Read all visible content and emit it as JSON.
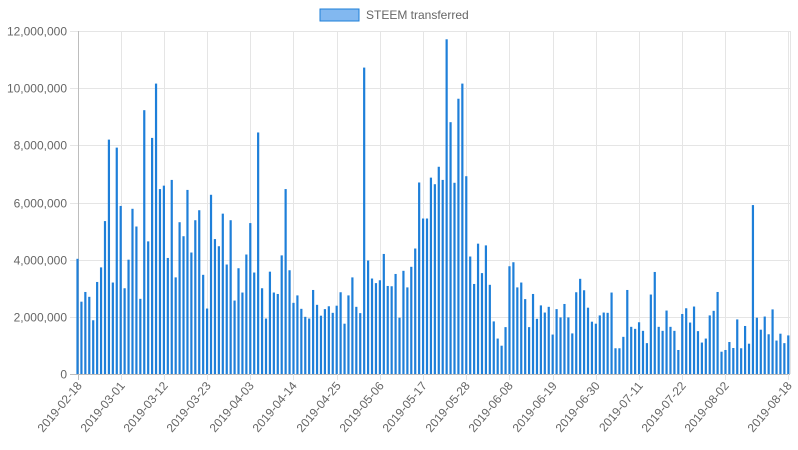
{
  "chart_data": {
    "type": "bar",
    "legend_position": "top",
    "grid": true,
    "series": [
      {
        "name": "STEEM transferred",
        "color": "#1e7fd9",
        "fill": "#82b8f0",
        "start_date": "2019-02-18",
        "values": [
          4030000,
          2530000,
          2870000,
          2700000,
          1880000,
          3220000,
          3730000,
          5350000,
          8200000,
          3200000,
          7920000,
          5880000,
          3000000,
          4000000,
          5780000,
          5160000,
          2630000,
          9230000,
          4640000,
          8260000,
          10160000,
          6470000,
          6590000,
          4060000,
          6790000,
          3380000,
          5310000,
          4820000,
          6440000,
          4250000,
          5380000,
          5730000,
          3470000,
          2290000,
          6270000,
          4720000,
          4470000,
          5610000,
          3830000,
          5380000,
          2570000,
          3700000,
          2850000,
          4180000,
          5280000,
          3550000,
          8450000,
          3000000,
          1940000,
          3580000,
          2850000,
          2800000,
          4150000,
          6470000,
          3630000,
          2490000,
          2750000,
          2280000,
          2000000,
          1940000,
          2940000,
          2420000,
          2040000,
          2270000,
          2370000,
          2140000,
          2390000,
          2860000,
          1760000,
          2750000,
          3380000,
          2350000,
          2130000,
          10720000,
          3970000,
          3340000,
          3180000,
          3280000,
          4200000,
          3080000,
          3070000,
          3500000,
          1970000,
          3610000,
          3030000,
          3750000,
          4390000,
          6700000,
          5440000,
          5440000,
          6870000,
          6640000,
          7250000,
          6790000,
          11710000,
          8810000,
          6690000,
          9630000,
          10160000,
          6920000,
          4110000,
          3150000,
          4560000,
          3530000,
          4500000,
          3120000,
          1840000,
          1240000,
          990000,
          1640000,
          3770000,
          3910000,
          3030000,
          3200000,
          2620000,
          1640000,
          2800000,
          1930000,
          2400000,
          2150000,
          2350000,
          1380000,
          2270000,
          1980000,
          2450000,
          1980000,
          1420000,
          2860000,
          3330000,
          2930000,
          2320000,
          1830000,
          1760000,
          2050000,
          2150000,
          2140000,
          2850000,
          900000,
          900000,
          1300000,
          2940000,
          1650000,
          1580000,
          1810000,
          1510000,
          1080000,
          2780000,
          3570000,
          1650000,
          1510000,
          2220000,
          1650000,
          1510000,
          840000,
          2100000,
          2300000,
          1800000,
          2360000,
          1500000,
          1100000,
          1240000,
          2050000,
          2210000,
          2870000,
          780000,
          840000,
          1120000,
          910000,
          1910000,
          900000,
          1680000,
          1060000,
          5910000,
          1970000,
          1550000,
          2010000,
          1390000,
          2260000,
          1170000,
          1410000,
          1080000,
          1350000
        ]
      }
    ],
    "x_tick_labels": [
      "2019-02-18",
      "2019-03-01",
      "2019-03-12",
      "2019-03-23",
      "2019-04-03",
      "2019-04-14",
      "2019-04-25",
      "2019-05-06",
      "2019-05-17",
      "2019-05-28",
      "2019-06-08",
      "2019-06-19",
      "2019-06-30",
      "2019-07-11",
      "2019-07-22",
      "2019-08-02",
      "2019-08-18"
    ],
    "x_tick_days": [
      0,
      11,
      22,
      33,
      44,
      55,
      66,
      77,
      88,
      99,
      110,
      121,
      132,
      143,
      154,
      165,
      181
    ],
    "ylim": [
      0,
      12000000
    ],
    "y_tick_values": [
      0,
      2000000,
      4000000,
      6000000,
      8000000,
      10000000,
      12000000
    ],
    "y_tick_labels": [
      "0",
      "2,000,000",
      "4,000,000",
      "6,000,000",
      "8,000,000",
      "10,000,000",
      "12,000,000"
    ],
    "title": "",
    "xlabel": "",
    "ylabel": ""
  }
}
